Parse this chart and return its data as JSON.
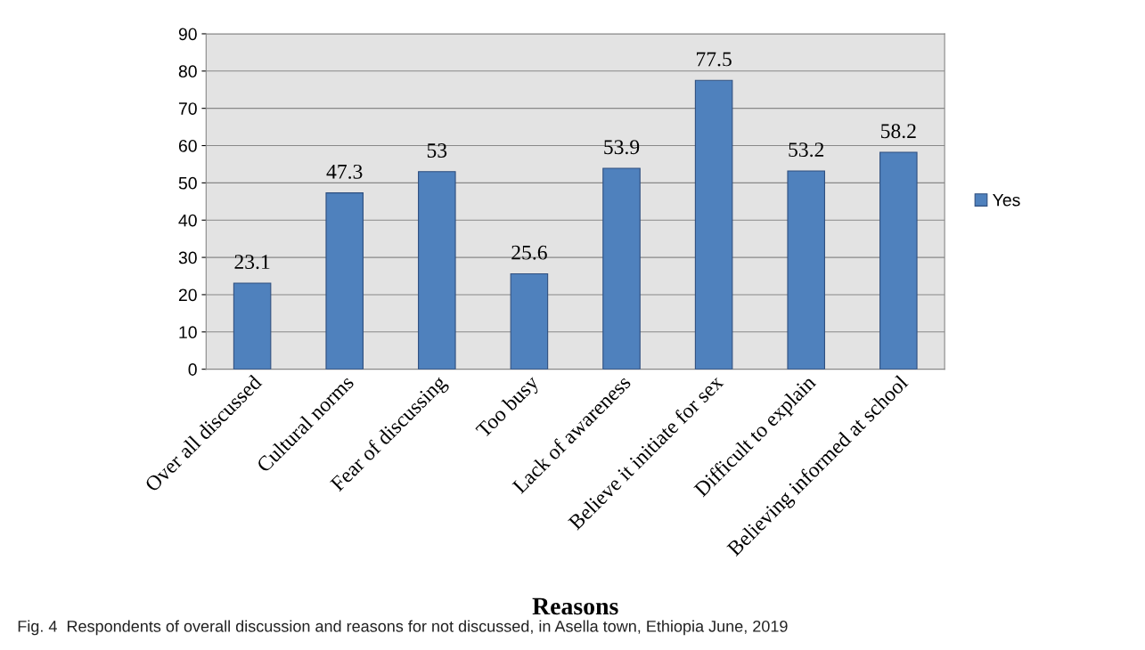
{
  "chart_data": {
    "type": "bar",
    "xlabel": "Reasons",
    "categories": [
      "Over all discussed",
      "Cultural norms",
      "Fear of discussing",
      "Too busy",
      "Lack of awareness",
      "Believe it initiate for sex",
      "Difficult to explain",
      "Believing informed at school"
    ],
    "series": [
      {
        "name": "Yes",
        "color": "#4f81bd",
        "values": [
          23.1,
          47.3,
          53,
          25.6,
          53.9,
          77.5,
          53.2,
          58.2
        ]
      }
    ],
    "ylim": [
      0,
      90
    ],
    "yticks": [
      0,
      10,
      20,
      30,
      40,
      50,
      60,
      70,
      80,
      90
    ],
    "grid": "y",
    "legend": "right",
    "data_labels": true,
    "annotations": [
      "Fig. 4  Respondents of overall discussion and reasons for not discussed, in Asella town, Ethiopia June, 2019"
    ]
  }
}
